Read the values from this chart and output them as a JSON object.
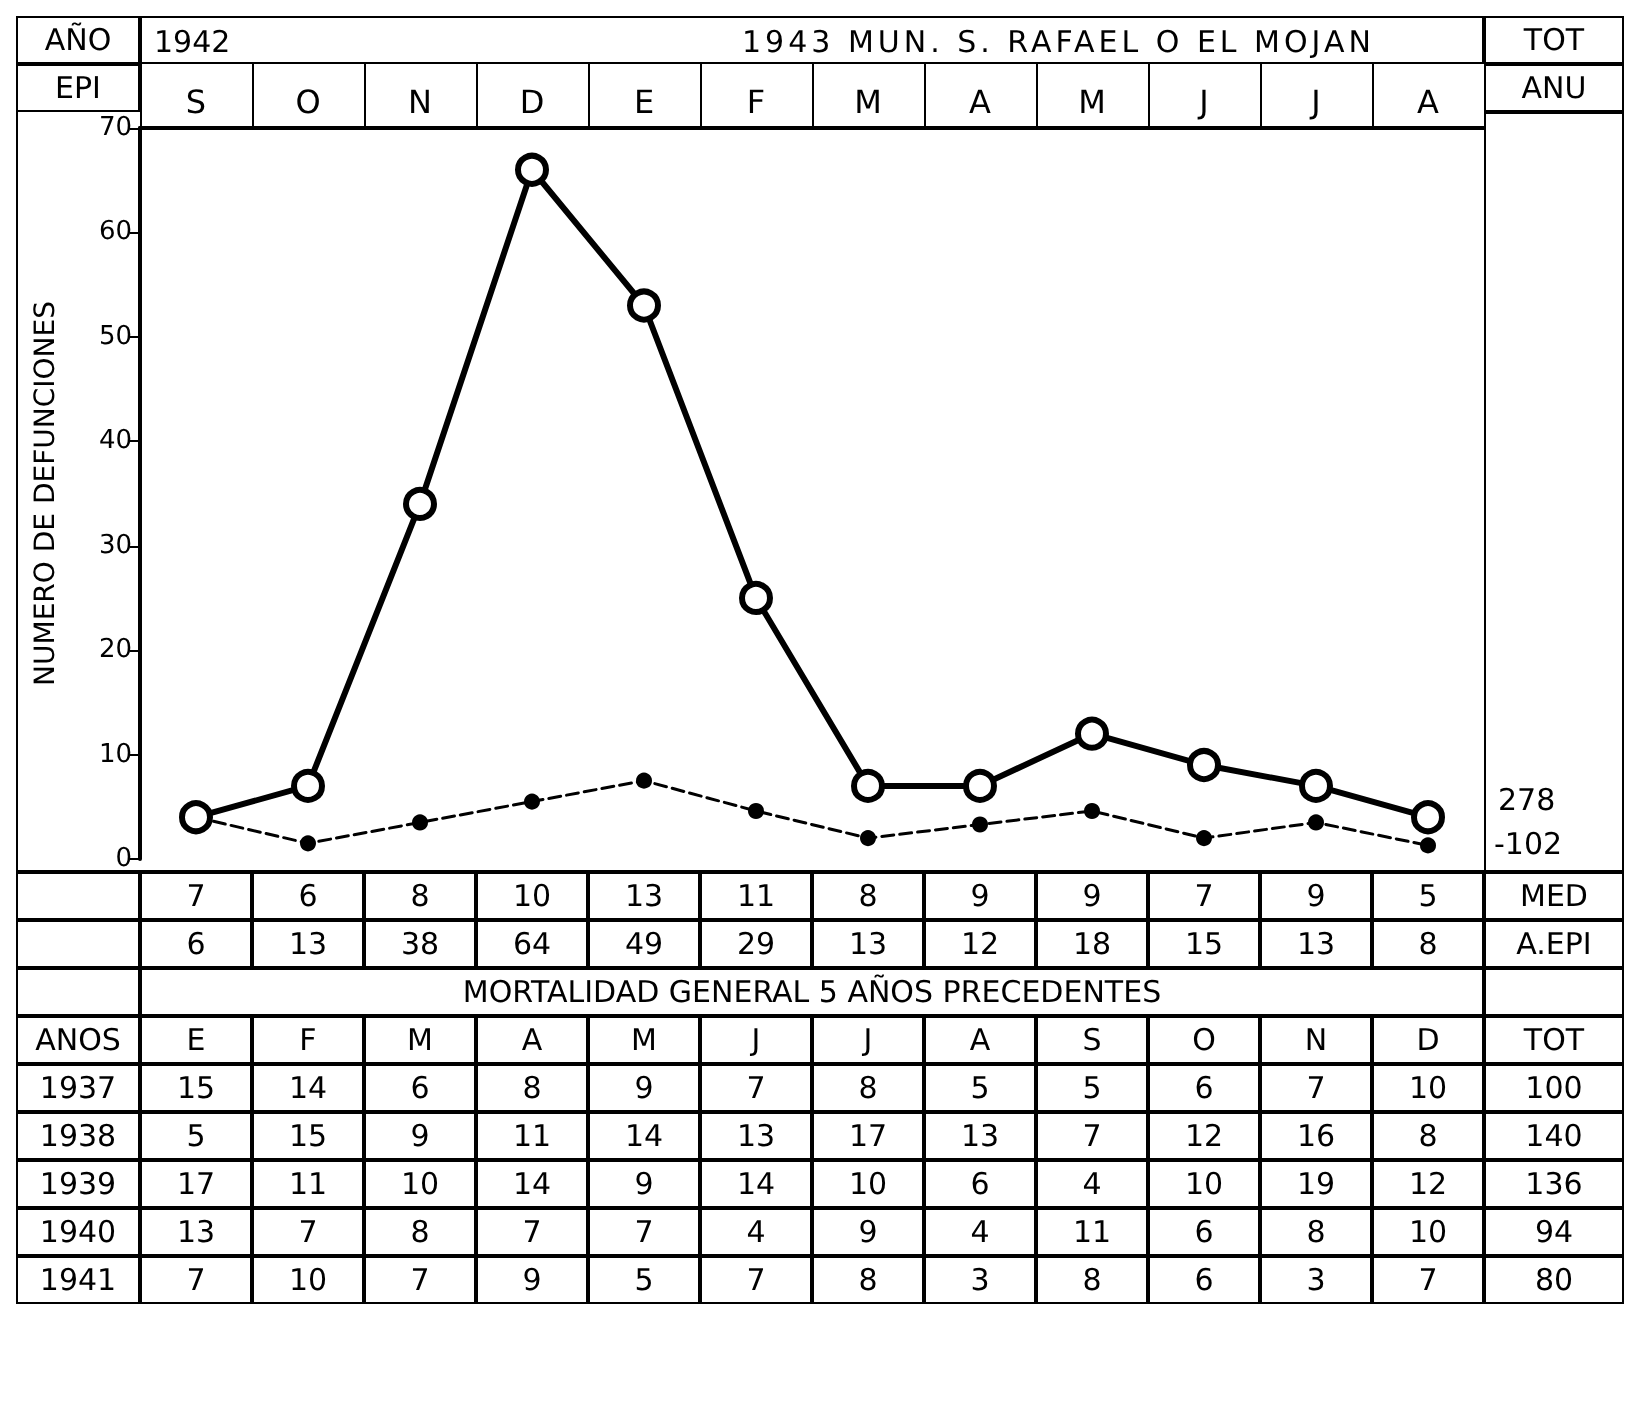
{
  "chart_data": {
    "type": "line",
    "title": "1943 MUN. S. RAFAEL O EL MOJAN",
    "ylabel": "NUMERO DE DEFUNCIONES",
    "categories": [
      "S",
      "O",
      "N",
      "D",
      "E",
      "F",
      "M",
      "A",
      "M",
      "J",
      "J",
      "A"
    ],
    "series": [
      {
        "color": "#000000",
        "marker": "circle",
        "line_style": "solid",
        "values": [
          4,
          7,
          34,
          66,
          53,
          25,
          7,
          7,
          12,
          9,
          7,
          4
        ]
      },
      {
        "color": "#000000",
        "marker": "circle",
        "line_style": "dashed",
        "values": [
          4,
          1.5,
          3.5,
          5.5,
          7.5,
          4.6,
          2,
          3.3,
          4.6,
          2,
          3.5,
          1.3
        ]
      }
    ],
    "ylim": [
      0,
      70
    ],
    "yticks": [
      0,
      10,
      20,
      30,
      40,
      50,
      60,
      70
    ],
    "grid": false,
    "annotations": [
      "AÑO",
      "1942",
      "TOT",
      "EPI",
      "ANU",
      "278",
      "-102",
      "7 6 8 10 13 11 8 9 9 7 9 5 MED",
      "6 13 38 64 49 29 13 12 18 15 13 8 A.EPI",
      "MORTALIDAD GENERAL 5 AÑOS PRECEDENTES",
      "ANOS E F M A M J J A S O N D TOT",
      "1937 15 14 6 8 9 7 8 5 5 6 7 10 100",
      "1938 5 15 9 11 14 13 17 13 7 12 16 8 140",
      "1939 17 11 10 14 9 14 10 6 4 10 19 12 136",
      "1940 13 7 8 7 7 4 9 4 11 6 8 10 94",
      "1941 7 10 7 9 5 7 8 3 8 6 3 7 80"
    ]
  }
}
